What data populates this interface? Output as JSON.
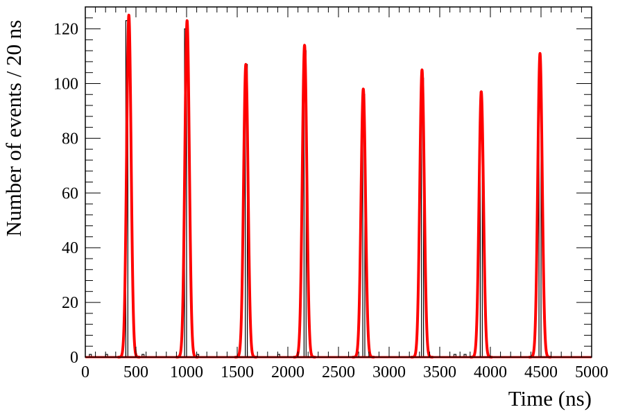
{
  "chart_data": {
    "type": "line",
    "title": "",
    "xlabel": "Time (ns)",
    "ylabel": "Number of events / 20 ns",
    "xlim": [
      0,
      5000
    ],
    "ylim": [
      0,
      128
    ],
    "x_ticks": [
      0,
      500,
      1000,
      1500,
      2000,
      2500,
      3000,
      3500,
      4000,
      4500,
      5000
    ],
    "y_ticks": [
      0,
      20,
      40,
      60,
      80,
      100,
      120
    ],
    "bin_width": 20,
    "grid": false,
    "legend": "none",
    "series": [
      {
        "kind": "histogram",
        "color": "#000000",
        "bins": [
          {
            "x": 40,
            "y": 1
          },
          {
            "x": 200,
            "y": 1
          },
          {
            "x": 400,
            "y": 123
          },
          {
            "x": 980,
            "y": 120
          },
          {
            "x": 1580,
            "y": 107
          },
          {
            "x": 2160,
            "y": 112
          },
          {
            "x": 2740,
            "y": 96
          },
          {
            "x": 3320,
            "y": 102
          },
          {
            "x": 3900,
            "y": 97
          },
          {
            "x": 4480,
            "y": 108
          },
          {
            "x": 560,
            "y": 1
          },
          {
            "x": 1100,
            "y": 1
          },
          {
            "x": 1900,
            "y": 1
          },
          {
            "x": 3640,
            "y": 1
          },
          {
            "x": 3740,
            "y": 1
          }
        ]
      },
      {
        "kind": "fit",
        "color": "#ff0000",
        "peaks": [
          {
            "center": 430,
            "amplitude": 125
          },
          {
            "center": 1005,
            "amplitude": 123
          },
          {
            "center": 1585,
            "amplitude": 107
          },
          {
            "center": 2165,
            "amplitude": 114
          },
          {
            "center": 2745,
            "amplitude": 98
          },
          {
            "center": 3325,
            "amplitude": 105
          },
          {
            "center": 3910,
            "amplitude": 97
          },
          {
            "center": 4490,
            "amplitude": 111
          }
        ],
        "sigma": 22
      }
    ]
  }
}
